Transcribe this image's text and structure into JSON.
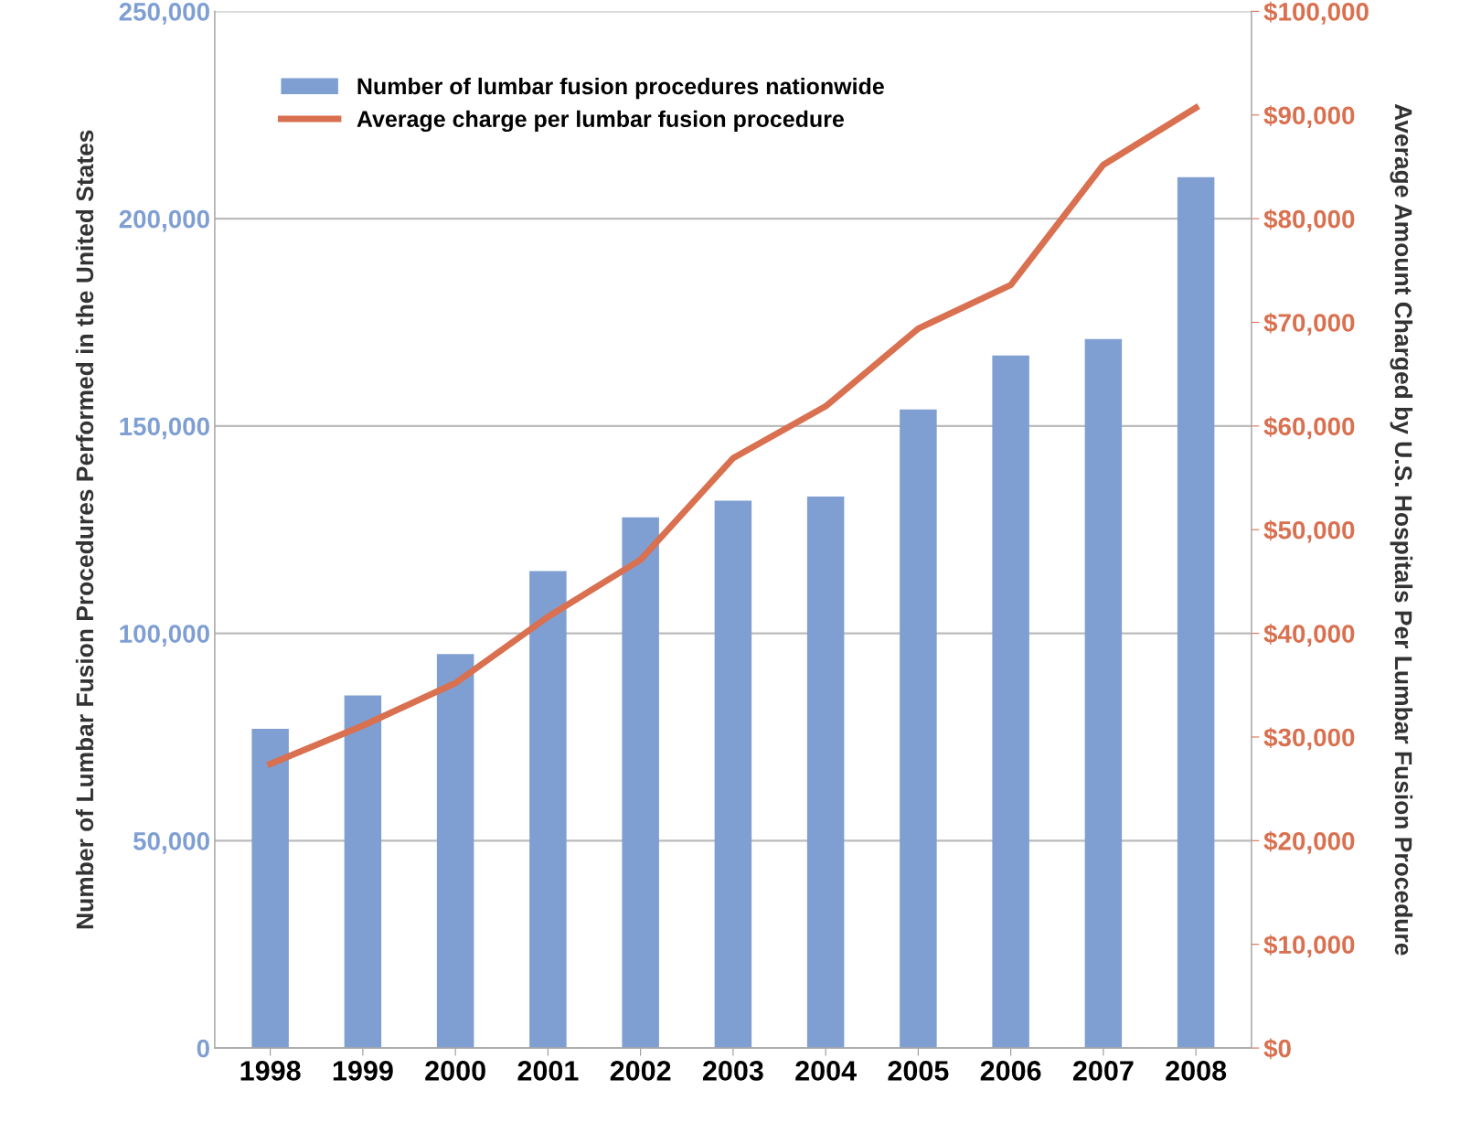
{
  "chart_data": {
    "type": "bar",
    "ylabel": "Number of Lumbar Fusion Procedures Performed in the United States",
    "y2label": "Average Amount Charged by U.S. Hospitals Per Lumbar Fusion Procedure",
    "categories": [
      "1998",
      "1999",
      "2000",
      "2001",
      "2002",
      "2003",
      "2004",
      "2005",
      "2006",
      "2007",
      "2008"
    ],
    "series": [
      {
        "name": "Number of lumbar fusion procedures nationwide",
        "color": "#7f9fd2",
        "values": [
          77000,
          85000,
          95000,
          115000,
          128000,
          132000,
          133000,
          154000,
          167000,
          171000,
          210000
        ]
      },
      {
        "name": "Average charge per lumbar fusion procedure",
        "type": "line",
        "axis": "y2",
        "color": "#d9704f",
        "values": [
          27400,
          31100,
          35200,
          41600,
          47100,
          56900,
          61900,
          69400,
          73600,
          85200,
          90700
        ]
      }
    ],
    "ylim": [
      0,
      250000
    ],
    "yticks": [
      0,
      {
        "value": 50000,
        "label": "50,000"
      },
      {
        "value": 100000,
        "label": "100,000"
      },
      {
        "value": 150000,
        "label": "150,000"
      },
      {
        "value": 200000,
        "label": "200,000"
      },
      {
        "value": 250000,
        "label": "250,000"
      }
    ],
    "y2lim": [
      0,
      100000
    ],
    "y2ticks": [
      {
        "value": 0,
        "label": "$0"
      },
      {
        "value": 10000,
        "label": "$10,000"
      },
      {
        "value": 20000,
        "label": "$20,000"
      },
      {
        "value": 30000,
        "label": "$30,000"
      },
      {
        "value": 40000,
        "label": "$40,000"
      },
      {
        "value": 50000,
        "label": "$50,000"
      },
      {
        "value": 60000,
        "label": "$60,000"
      },
      {
        "value": 70000,
        "label": "$70,000"
      },
      {
        "value": 80000,
        "label": "$80,000"
      },
      {
        "value": 90000,
        "label": "$90,000"
      },
      {
        "value": 100000,
        "label": "$100,000"
      }
    ],
    "grid": "y",
    "legend": "top left",
    "marker": "none",
    "line_style": "solid"
  }
}
